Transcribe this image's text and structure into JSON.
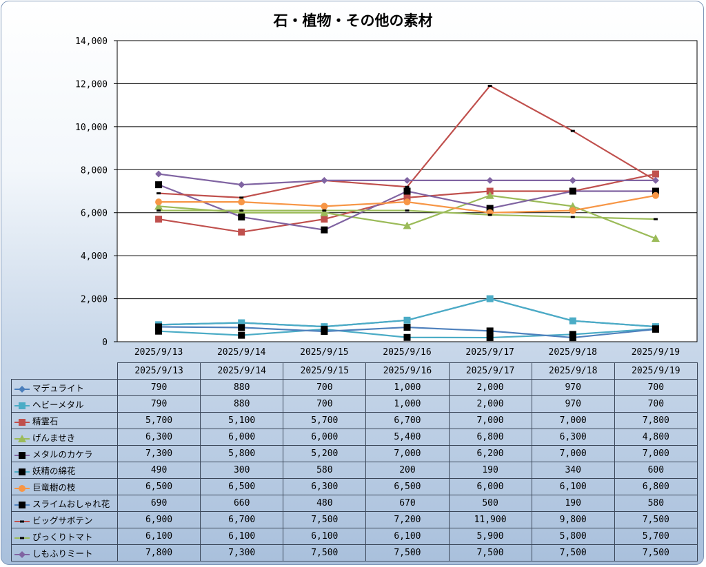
{
  "chart_data": {
    "type": "line",
    "title": "石・植物・その他の素材",
    "categories": [
      "2025/9/13",
      "2025/9/14",
      "2025/9/15",
      "2025/9/16",
      "2025/9/17",
      "2025/9/18",
      "2025/9/19"
    ],
    "y_ticks": [
      "0",
      "2,000",
      "4,000",
      "6,000",
      "8,000",
      "10,000",
      "12,000",
      "14,000"
    ],
    "ylim": [
      0,
      14000
    ],
    "grid": true,
    "legend": "data-table",
    "series": [
      {
        "name": "マデュライト",
        "values": [
          790,
          880,
          700,
          1000,
          2000,
          970,
          700
        ],
        "labels": [
          "790",
          "880",
          "700",
          "1,000",
          "2,000",
          "970",
          "700"
        ],
        "color": "#4a7ebb",
        "marker": "diamond",
        "line": true
      },
      {
        "name": "ヘビーメタル",
        "values": [
          790,
          880,
          700,
          1000,
          2000,
          970,
          700
        ],
        "labels": [
          "790",
          "880",
          "700",
          "1,000",
          "2,000",
          "970",
          "700"
        ],
        "color": "#4bacc6",
        "marker": "square",
        "line": true
      },
      {
        "name": "精霊石",
        "values": [
          5700,
          5100,
          5700,
          6700,
          7000,
          7000,
          7800
        ],
        "labels": [
          "5,700",
          "5,100",
          "5,700",
          "6,700",
          "7,000",
          "7,000",
          "7,800"
        ],
        "color": "#c0504d",
        "marker": "square",
        "line": true
      },
      {
        "name": "げんませき",
        "values": [
          6300,
          6000,
          6000,
          5400,
          6800,
          6300,
          4800
        ],
        "labels": [
          "6,300",
          "6,000",
          "6,000",
          "5,400",
          "6,800",
          "6,300",
          "4,800"
        ],
        "color": "#9bbb59",
        "marker": "triangle",
        "line": true
      },
      {
        "name": "メタルのカケラ",
        "values": [
          7300,
          5800,
          5200,
          7000,
          6200,
          7000,
          7000
        ],
        "labels": [
          "7,300",
          "5,800",
          "5,200",
          "7,000",
          "6,200",
          "7,000",
          "7,000"
        ],
        "color": "#8064a2",
        "marker": "blacksquare",
        "line": true
      },
      {
        "name": "妖精の綿花",
        "values": [
          490,
          300,
          580,
          200,
          190,
          340,
          600
        ],
        "labels": [
          "490",
          "300",
          "580",
          "200",
          "190",
          "340",
          "600"
        ],
        "color": "#4bacc6",
        "marker": "blacksquare",
        "line": true
      },
      {
        "name": "巨竜樹の枝",
        "values": [
          6500,
          6500,
          6300,
          6500,
          6000,
          6100,
          6800
        ],
        "labels": [
          "6,500",
          "6,500",
          "6,300",
          "6,500",
          "6,000",
          "6,100",
          "6,800"
        ],
        "color": "#f79646",
        "marker": "circle",
        "line": true
      },
      {
        "name": "スライムおしゃれ花",
        "values": [
          690,
          660,
          480,
          670,
          500,
          190,
          580
        ],
        "labels": [
          "690",
          "660",
          "480",
          "670",
          "500",
          "190",
          "580"
        ],
        "color": "#4f81bd",
        "marker": "blacksquare",
        "line": true
      },
      {
        "name": "ビッグサボテン",
        "values": [
          6900,
          6700,
          7500,
          7200,
          11900,
          9800,
          7500
        ],
        "labels": [
          "6,900",
          "6,700",
          "7,500",
          "7,200",
          "11,900",
          "9,800",
          "7,500"
        ],
        "color": "#c0504d",
        "marker": "dash",
        "line": true
      },
      {
        "name": "ぴっくりトマト",
        "values": [
          6100,
          6100,
          6100,
          6100,
          5900,
          5800,
          5700
        ],
        "labels": [
          "6,100",
          "6,100",
          "6,100",
          "6,100",
          "5,900",
          "5,800",
          "5,700"
        ],
        "color": "#9bbb59",
        "marker": "dash",
        "line": true
      },
      {
        "name": "しもふりミート",
        "values": [
          7800,
          7300,
          7500,
          7500,
          7500,
          7500,
          7500
        ],
        "labels": [
          "7,800",
          "7,300",
          "7,500",
          "7,500",
          "7,500",
          "7,500",
          "7,500"
        ],
        "color": "#8064a2",
        "marker": "diamond",
        "line": true
      }
    ]
  }
}
